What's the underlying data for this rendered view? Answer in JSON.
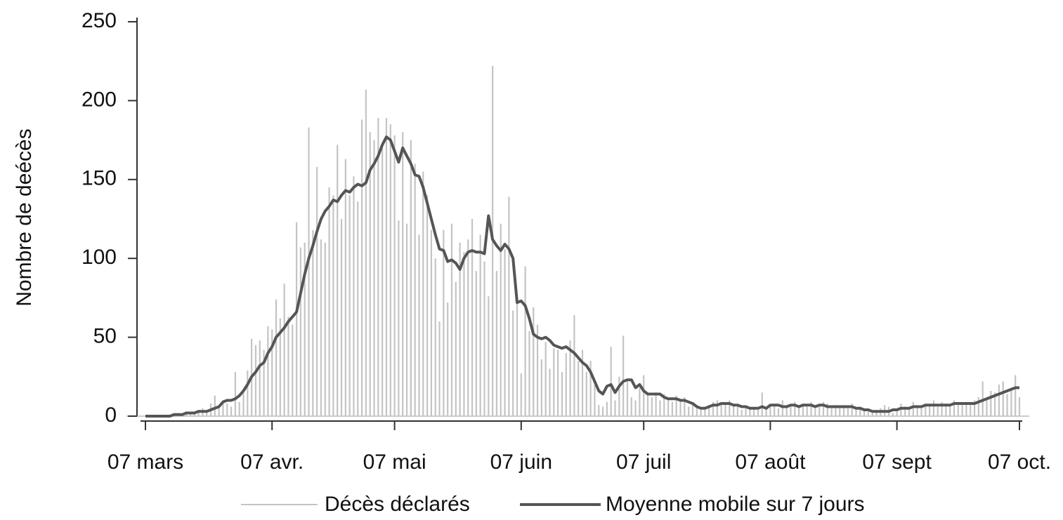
{
  "chart_data": {
    "type": "bar",
    "ylabel": "Nombre de deécès",
    "ylim": [
      0,
      250
    ],
    "yticks": [
      0,
      50,
      100,
      150,
      200,
      250
    ],
    "categories": [
      "07 mars",
      null,
      null,
      null,
      null,
      null,
      null,
      null,
      null,
      null,
      null,
      null,
      null,
      null,
      null,
      null,
      null,
      null,
      null,
      null,
      null,
      null,
      null,
      null,
      null,
      null,
      null,
      null,
      null,
      null,
      null,
      "07 avr.",
      null,
      null,
      null,
      null,
      null,
      null,
      null,
      null,
      null,
      null,
      null,
      null,
      null,
      null,
      null,
      null,
      null,
      null,
      null,
      null,
      null,
      null,
      null,
      null,
      null,
      null,
      null,
      null,
      null,
      "07 mai",
      null,
      null,
      null,
      null,
      null,
      null,
      null,
      null,
      null,
      null,
      null,
      null,
      null,
      null,
      null,
      null,
      null,
      null,
      null,
      null,
      null,
      null,
      null,
      null,
      null,
      null,
      null,
      null,
      null,
      null,
      "07 juin",
      null,
      null,
      null,
      null,
      null,
      null,
      null,
      null,
      null,
      null,
      null,
      null,
      null,
      null,
      null,
      null,
      null,
      null,
      null,
      null,
      null,
      null,
      null,
      null,
      null,
      null,
      null,
      null,
      null,
      "07 juil",
      null,
      null,
      null,
      null,
      null,
      null,
      null,
      null,
      null,
      null,
      null,
      null,
      null,
      null,
      null,
      null,
      null,
      null,
      null,
      null,
      null,
      null,
      null,
      null,
      null,
      null,
      null,
      null,
      null,
      null,
      "07 août",
      null,
      null,
      null,
      null,
      null,
      null,
      null,
      null,
      null,
      null,
      null,
      null,
      null,
      null,
      null,
      null,
      null,
      null,
      null,
      null,
      null,
      null,
      null,
      null,
      null,
      null,
      null,
      null,
      null,
      null,
      "07 sept",
      null,
      null,
      null,
      null,
      null,
      null,
      null,
      null,
      null,
      null,
      null,
      null,
      null,
      null,
      null,
      null,
      null,
      null,
      null,
      null,
      null,
      null,
      null,
      null,
      null,
      null,
      null,
      null,
      null,
      "07 oct."
    ],
    "series": [
      {
        "name": "Décès déclarés",
        "type": "bar",
        "color": "#c4c4c4",
        "values": [
          0,
          0,
          0,
          0,
          0,
          0,
          1,
          2,
          2,
          1,
          3,
          2,
          3,
          4,
          5,
          4,
          8,
          13,
          6,
          10,
          8,
          6,
          28,
          9,
          15,
          29,
          49,
          45,
          48,
          42,
          57,
          55,
          74,
          62,
          84,
          63,
          58,
          123,
          107,
          110,
          183,
          118,
          158,
          112,
          110,
          145,
          140,
          172,
          125,
          163,
          140,
          152,
          136,
          188,
          207,
          180,
          175,
          189,
          170,
          189,
          185,
          178,
          124,
          180,
          122,
          175,
          160,
          115,
          155,
          140,
          118,
          100,
          60,
          118,
          72,
          122,
          85,
          110,
          104,
          112,
          125,
          92,
          115,
          98,
          76,
          222,
          92,
          122,
          106,
          139,
          67,
          72,
          27,
          95,
          54,
          69,
          58,
          36,
          47,
          30,
          43,
          42,
          28,
          40,
          48,
          64,
          35,
          42,
          28,
          35,
          20,
          7,
          6,
          9,
          44,
          10,
          25,
          51,
          22,
          12,
          10,
          18,
          26,
          14,
          12,
          15,
          10,
          14,
          11,
          9,
          13,
          9,
          12,
          6,
          8,
          5,
          4,
          6,
          7,
          9,
          10,
          9,
          8,
          10,
          7,
          6,
          4,
          5,
          6,
          5,
          4,
          15,
          6,
          7,
          8,
          5,
          10,
          7,
          6,
          9,
          7,
          8,
          6,
          9,
          5,
          7,
          9,
          8,
          5,
          7,
          6,
          7,
          5,
          8,
          4,
          6,
          5,
          3,
          2,
          4,
          5,
          7,
          6,
          2,
          4,
          8,
          6,
          5,
          9,
          6,
          5,
          8,
          7,
          10,
          6,
          9,
          8,
          7,
          10,
          9,
          8,
          9,
          7,
          10,
          12,
          22,
          10,
          16,
          15,
          20,
          22,
          14,
          18,
          26,
          12
        ]
      },
      {
        "name": "Moyenne mobile sur 7 jours",
        "type": "line",
        "color": "#555555",
        "values": [
          0,
          0,
          0,
          0,
          0,
          0,
          0,
          1,
          1,
          1,
          2,
          2,
          2,
          3,
          3,
          3,
          4,
          5,
          6,
          9,
          10,
          10,
          11,
          13,
          16,
          20,
          25,
          28,
          32,
          34,
          40,
          44,
          50,
          53,
          56,
          60,
          63,
          66,
          78,
          90,
          100,
          108,
          117,
          125,
          130,
          133,
          137,
          136,
          140,
          143,
          142,
          145,
          147,
          146,
          148,
          156,
          160,
          165,
          172,
          177,
          175,
          168,
          161,
          170,
          165,
          160,
          153,
          152,
          145,
          135,
          125,
          115,
          106,
          105,
          98,
          99,
          97,
          93,
          100,
          104,
          105,
          104,
          104,
          103,
          127,
          112,
          108,
          105,
          109,
          106,
          100,
          72,
          73,
          70,
          62,
          52,
          50,
          49,
          50,
          48,
          45,
          44,
          43,
          44,
          42,
          40,
          37,
          34,
          32,
          28,
          22,
          16,
          14,
          19,
          20,
          15,
          19,
          22,
          23,
          23,
          18,
          20,
          16,
          14,
          14,
          14,
          14,
          12,
          11,
          11,
          11,
          10,
          10,
          9,
          8,
          6,
          5,
          5,
          6,
          7,
          7,
          8,
          8,
          8,
          7,
          7,
          6,
          6,
          5,
          5,
          5,
          6,
          5,
          7,
          7,
          7,
          6,
          6,
          7,
          7,
          6,
          7,
          7,
          7,
          6,
          7,
          7,
          6,
          6,
          6,
          6,
          6,
          6,
          6,
          5,
          5,
          4,
          4,
          3,
          3,
          3,
          3,
          3,
          4,
          4,
          5,
          5,
          5,
          6,
          6,
          6,
          7,
          7,
          7,
          7,
          7,
          7,
          7,
          8,
          8,
          8,
          8,
          8,
          8,
          9,
          10,
          11,
          12,
          13,
          14,
          15,
          16,
          17,
          18,
          18
        ]
      }
    ]
  }
}
